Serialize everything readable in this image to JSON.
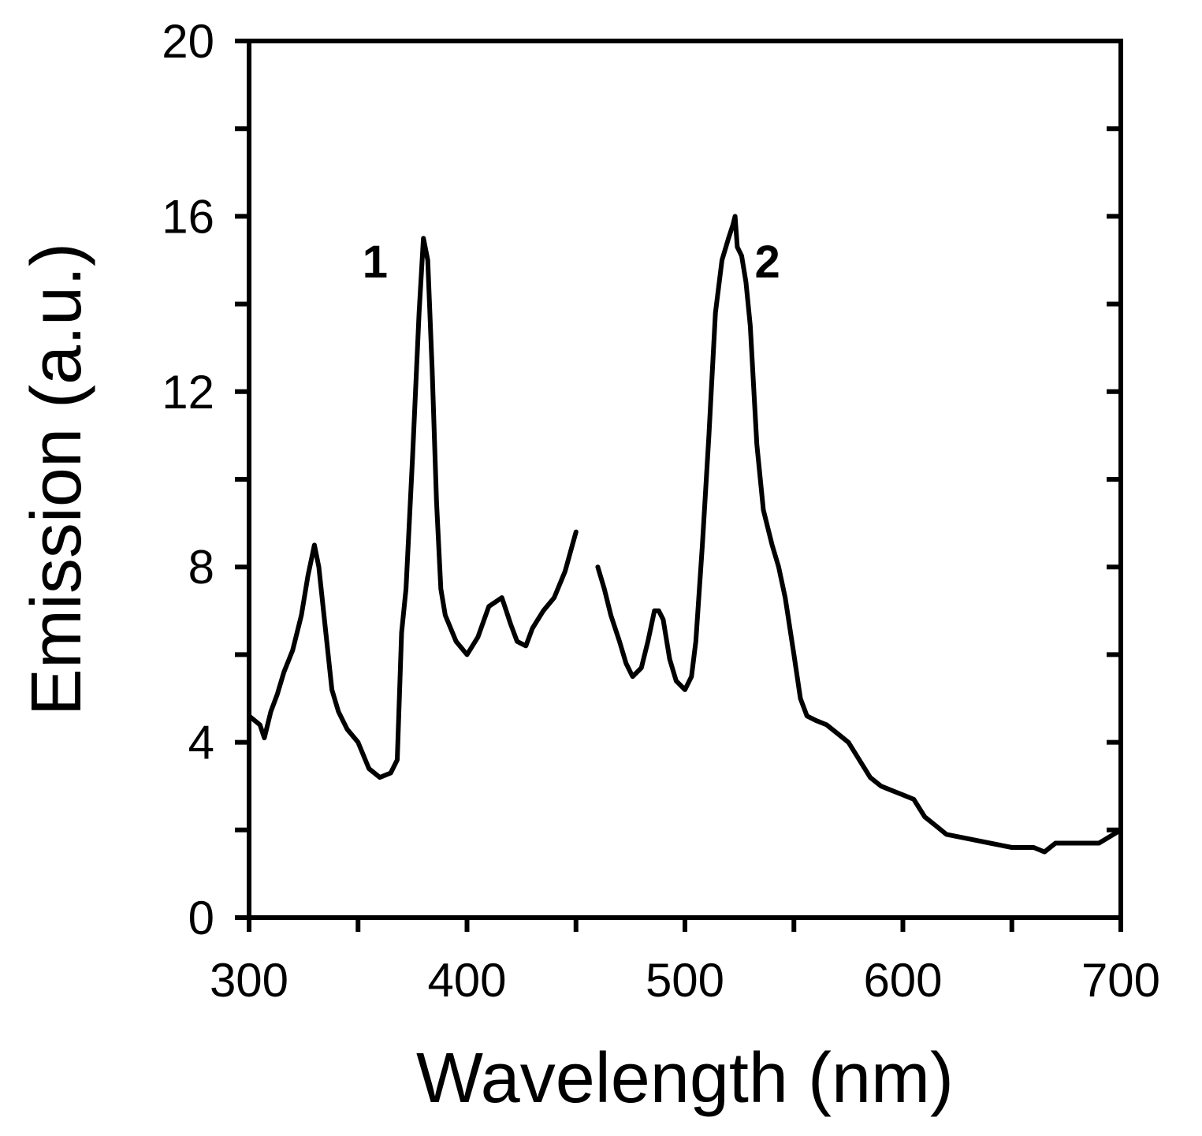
{
  "chart_data": {
    "type": "line",
    "title": "",
    "xlabel": "Wavelength (nm)",
    "ylabel": "Emission (a.u.)",
    "xlim": [
      300,
      700
    ],
    "ylim": [
      0,
      20
    ],
    "xticks": [
      300,
      400,
      500,
      600,
      700
    ],
    "xticks_minor": [
      350,
      450,
      550,
      650
    ],
    "yticks": [
      0,
      4,
      8,
      12,
      16,
      20
    ],
    "yticks_minor": [
      2,
      6,
      10,
      14,
      18
    ],
    "grid": false,
    "color": "#000000",
    "annotations": [
      {
        "text": "1",
        "x": 352,
        "y": 14.6
      },
      {
        "text": "2",
        "x": 532,
        "y": 14.6
      }
    ],
    "series": [
      {
        "name": "1",
        "x": [
          300,
          305,
          307,
          310,
          313,
          316,
          320,
          324,
          327,
          330,
          332,
          335,
          338,
          341,
          345,
          350,
          355,
          360,
          365,
          368,
          370,
          372,
          375,
          378,
          380,
          382,
          384,
          386,
          388,
          390,
          395,
          400,
          405,
          410,
          413,
          416,
          418,
          420,
          423,
          427,
          430,
          435,
          440,
          445,
          450
        ],
        "y": [
          4.6,
          4.4,
          4.1,
          4.7,
          5.1,
          5.6,
          6.1,
          6.9,
          7.8,
          8.5,
          8.0,
          6.6,
          5.2,
          4.7,
          4.3,
          4.0,
          3.4,
          3.2,
          3.3,
          3.6,
          6.5,
          7.5,
          10.5,
          13.8,
          15.5,
          15.0,
          12.5,
          9.5,
          7.5,
          6.9,
          6.3,
          6.0,
          6.4,
          7.1,
          7.2,
          7.3,
          7.0,
          6.7,
          6.3,
          6.2,
          6.6,
          7.0,
          7.3,
          7.9,
          8.8
        ]
      },
      {
        "name": "2",
        "x": [
          460,
          463,
          466,
          470,
          473,
          476,
          480,
          483,
          486,
          488,
          490,
          493,
          496,
          500,
          503,
          505,
          508,
          511,
          514,
          517,
          520,
          522,
          523,
          524,
          526,
          528,
          530,
          533,
          536,
          540,
          543,
          546,
          550,
          553,
          556,
          560,
          565,
          570,
          575,
          580,
          585,
          590,
          595,
          600,
          605,
          610,
          615,
          620,
          630,
          640,
          650,
          660,
          665,
          670,
          680,
          690,
          700
        ],
        "y": [
          8.0,
          7.5,
          6.9,
          6.3,
          5.8,
          5.5,
          5.7,
          6.3,
          7.0,
          7.0,
          6.8,
          5.9,
          5.4,
          5.2,
          5.5,
          6.3,
          8.5,
          11.0,
          13.8,
          15.0,
          15.5,
          15.8,
          16.0,
          15.3,
          15.1,
          14.5,
          13.5,
          10.8,
          9.3,
          8.5,
          8.0,
          7.3,
          6.0,
          5.0,
          4.6,
          4.5,
          4.4,
          4.2,
          4.0,
          3.6,
          3.2,
          3.0,
          2.9,
          2.8,
          2.7,
          2.3,
          2.1,
          1.9,
          1.8,
          1.7,
          1.6,
          1.6,
          1.5,
          1.7,
          1.7,
          1.7,
          2.0
        ]
      }
    ]
  }
}
